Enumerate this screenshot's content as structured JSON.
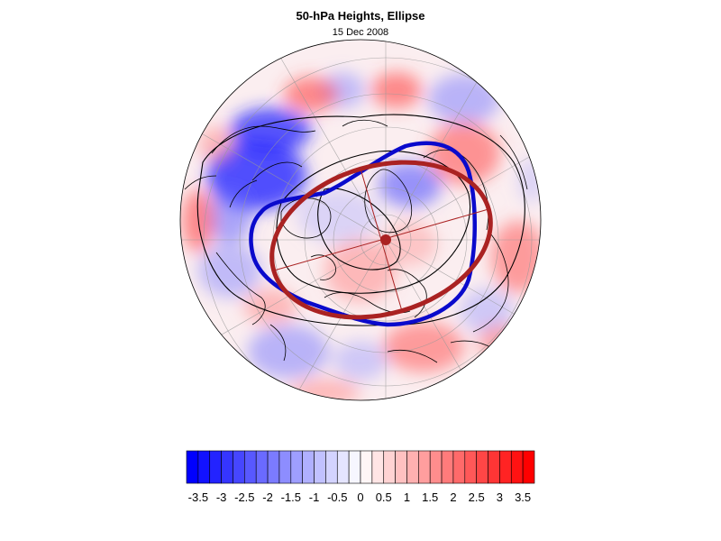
{
  "title": "50-hPa Heights, Ellipse",
  "subtitle": "15 Dec 2008",
  "projection": "north-polar-stereographic",
  "colors": {
    "negative": "#0000ff",
    "positive": "#ff0000",
    "vortex_contour": "#0000cc",
    "ellipse": "#aa2222",
    "coastline": "#000000",
    "grid": "#999999"
  },
  "colorbar": {
    "labels": [
      "-3.5",
      "-3",
      "-2.5",
      "-2",
      "-1.5",
      "-1",
      "-0.5",
      "0",
      "0.5",
      "1",
      "1.5",
      "2",
      "2.5",
      "3",
      "3.5"
    ],
    "min": -3.75,
    "max": 3.75,
    "step": 0.25
  }
}
